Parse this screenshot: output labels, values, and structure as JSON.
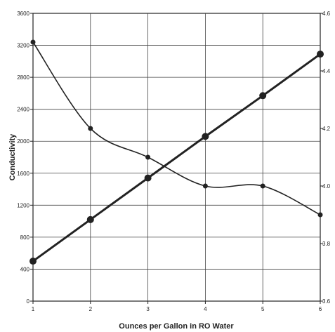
{
  "chart_data": {
    "type": "line",
    "title": "",
    "xlabel": "Ounces per Gallon in RO Water",
    "ylabel": "Conductivity",
    "y2label": "",
    "x": [
      1,
      2,
      3,
      4,
      5,
      6
    ],
    "xlim": [
      1,
      6
    ],
    "ylim": [
      0,
      3600
    ],
    "y2lim": [
      3.6,
      4.6
    ],
    "xticks": [
      1,
      2,
      3,
      4,
      5,
      6
    ],
    "yticks": [
      0,
      400,
      800,
      1200,
      1600,
      2000,
      2400,
      2800,
      3200,
      3600
    ],
    "y2ticks": [
      "3.6",
      "3.8",
      "4.0",
      "4.2",
      "4.4",
      "4.6"
    ],
    "grid": true,
    "legend": "none",
    "series": [
      {
        "axis": "left",
        "values": [
          500,
          1020,
          1540,
          2060,
          2570,
          3090
        ],
        "color": "#222222",
        "marker": "large-circle",
        "style": "straight"
      },
      {
        "axis": "right",
        "values": [
          4.5,
          4.2,
          4.1,
          4.0,
          4.0,
          3.9
        ],
        "color": "#222222",
        "marker": "small-circle",
        "style": "smooth"
      }
    ]
  }
}
